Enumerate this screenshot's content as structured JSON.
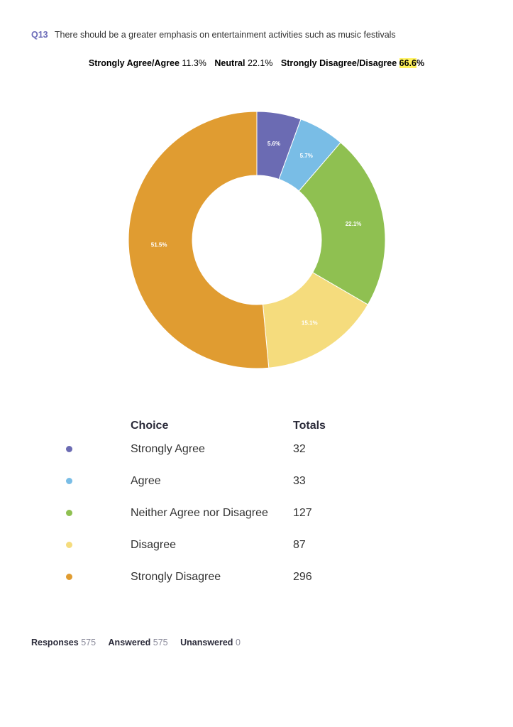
{
  "question": {
    "number": "Q13",
    "text": "There should be a greater emphasis on entertainment activities such as music festivals"
  },
  "summary": {
    "agree_label": "Strongly Agree/Agree",
    "agree_value": "11.3%",
    "neutral_label": "Neutral",
    "neutral_value": "22.1%",
    "disagree_label": "Strongly Disagree/Disagree",
    "disagree_value_highlight": "66.6",
    "disagree_value_suffix": "%"
  },
  "table": {
    "choice_header": "Choice",
    "totals_header": "Totals"
  },
  "chart_data": {
    "type": "pie",
    "donut": true,
    "categories": [
      "Strongly Agree",
      "Agree",
      "Neither Agree nor Disagree",
      "Disagree",
      "Strongly Disagree"
    ],
    "values": [
      32,
      33,
      127,
      87,
      296
    ],
    "slice_labels": [
      "5.6%",
      "5.7%",
      "22.1%",
      "15.1%",
      "51.5%"
    ],
    "colors": [
      "#6b6bb3",
      "#79bde6",
      "#8fc051",
      "#f5dc7d",
      "#e09c31"
    ],
    "title": "",
    "legend_placement": "bottom"
  },
  "footer": {
    "responses_label": "Responses",
    "responses_value": "575",
    "answered_label": "Answered",
    "answered_value": "575",
    "unanswered_label": "Unanswered",
    "unanswered_value": "0"
  }
}
